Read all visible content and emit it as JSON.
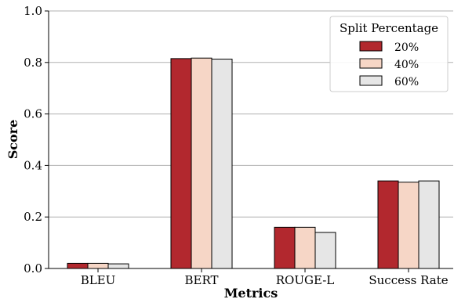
{
  "chart_data": {
    "type": "bar",
    "title": "",
    "xlabel": "Metrics",
    "ylabel": "Score",
    "ylim": [
      0,
      1.0
    ],
    "yticks": [
      "0.0",
      "0.2",
      "0.4",
      "0.6",
      "0.8",
      "1.0"
    ],
    "grid": "horizontal",
    "legend_title": "Split Percentage",
    "legend_position": "top-right",
    "categories": [
      "BLEU",
      "BERT",
      "ROUGE-L",
      "Success Rate"
    ],
    "series": [
      {
        "name": "20%",
        "color": "#b2282e",
        "values": [
          0.02,
          0.815,
          0.16,
          0.34
        ]
      },
      {
        "name": "40%",
        "color": "#f6d6c6",
        "values": [
          0.02,
          0.817,
          0.16,
          0.335
        ]
      },
      {
        "name": "60%",
        "color": "#e6e6e6",
        "values": [
          0.018,
          0.813,
          0.14,
          0.34
        ]
      }
    ]
  }
}
